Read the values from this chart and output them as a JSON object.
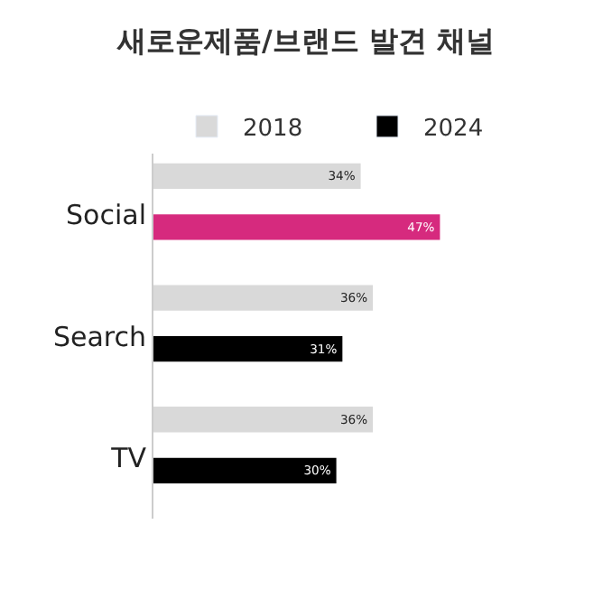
{
  "chart_data": {
    "type": "bar",
    "orientation": "horizontal",
    "title": "새로운제품/브랜드 발견 채널",
    "categories": [
      "Social",
      "Search",
      "TV"
    ],
    "series": [
      {
        "name": "2018",
        "color": "#d9d9d9",
        "values": [
          34,
          36,
          36
        ],
        "value_labels": [
          "34%",
          "36%",
          "36%"
        ]
      },
      {
        "name": "2024",
        "color": "#000000",
        "colors": [
          "#d62a7e",
          "#000000",
          "#000000"
        ],
        "values": [
          47,
          31,
          30
        ],
        "value_labels": [
          "47%",
          "31%",
          "30%"
        ]
      }
    ],
    "legend": "top"
  }
}
